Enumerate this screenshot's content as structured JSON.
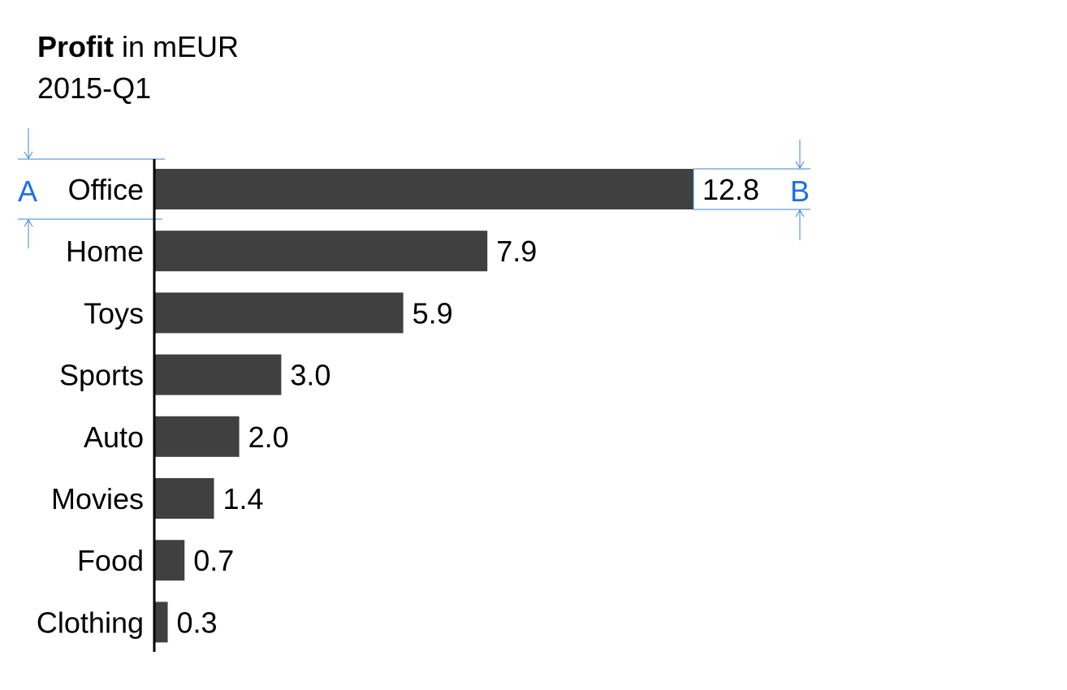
{
  "chart_data": {
    "type": "bar",
    "orientation": "horizontal",
    "title": {
      "bold": "Profit",
      "rest": " in mEUR"
    },
    "subtitle": "2015-Q1",
    "categories": [
      "Office",
      "Home",
      "Toys",
      "Sports",
      "Auto",
      "Movies",
      "Food",
      "Clothing"
    ],
    "values": [
      12.8,
      7.9,
      5.9,
      3.0,
      2.0,
      1.4,
      0.7,
      0.3
    ],
    "value_labels": [
      "12.8",
      "7.9",
      "5.9",
      "3.0",
      "2.0",
      "1.4",
      "0.7",
      "0.3"
    ],
    "xlim": [
      0,
      12.8
    ],
    "grid": false,
    "legend": "none",
    "annotations": {
      "left_marker": "A",
      "right_marker": "B"
    },
    "colors": {
      "bar": "#404040",
      "axis": "#000000",
      "annotation": "#1a6fe8",
      "annotation_line": "#3a86d6"
    }
  }
}
